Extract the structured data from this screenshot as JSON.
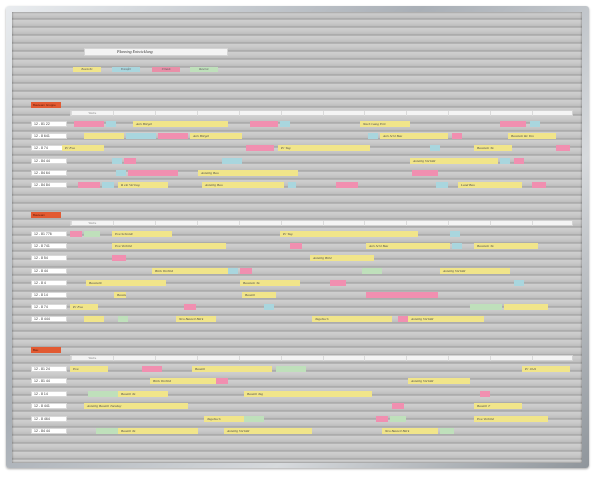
{
  "board": {
    "title": "Planning Entwicklung",
    "legend": [
      {
        "label": "Baustelle",
        "color": "#f1e58a"
      },
      {
        "label": "Transfer",
        "color": "#a9d6de"
      },
      {
        "label": "Urlaub",
        "color": "#e98fa8"
      },
      {
        "label": "Reserve",
        "color": "#bfe0bb"
      }
    ]
  },
  "sections": [
    {
      "tag": "Bauteam Gruppe",
      "header": [
        "Woche",
        "",
        "",
        "",
        "",
        "",
        "",
        "",
        "",
        "",
        "",
        ""
      ],
      "rows": [
        {
          "label": "12 - 81 22",
          "cards": [
            {
              "text": "",
              "color": "#f18fb0"
            },
            {
              "text": "",
              "color": "#a9d6de"
            },
            {
              "text": "Avis Bürgel",
              "color": "#f1e58a"
            },
            {
              "text": "",
              "color": "#f18fb0"
            },
            {
              "text": "",
              "color": "#a9d6de"
            },
            {
              "text": "Nach Gang Erle",
              "color": "#f1e58a"
            },
            {
              "text": "",
              "color": "#f18fb0"
            },
            {
              "text": "",
              "color": "#a9d6de"
            }
          ]
        },
        {
          "label": "12 - 8 641",
          "cards": [
            {
              "text": "",
              "color": "#f1e58a"
            },
            {
              "text": "",
              "color": "#a9d6de"
            },
            {
              "text": "",
              "color": "#f18fb0"
            },
            {
              "text": "Avis Bürgel",
              "color": "#f1e58a"
            },
            {
              "text": "",
              "color": "#a9d6de"
            },
            {
              "text": "Avis Schl Bau",
              "color": "#f1e58a"
            },
            {
              "text": "",
              "color": "#f18fb0"
            },
            {
              "text": "Baustein Re Ton",
              "color": "#f1e58a"
            }
          ]
        },
        {
          "label": "12 - 8 74",
          "cards": [
            {
              "text": "Pr Eva",
              "color": "#f1e58a"
            },
            {
              "text": "",
              "color": "#f18fb0"
            },
            {
              "text": "Pr Tag",
              "color": "#f1e58a"
            },
            {
              "text": "",
              "color": "#a9d6de"
            },
            {
              "text": "Baustein Ta",
              "color": "#f1e58a"
            },
            {
              "text": "",
              "color": "#f18fb0"
            }
          ]
        },
        {
          "label": "12 - 84 44",
          "cards": [
            {
              "text": "",
              "color": "#a9d6de"
            },
            {
              "text": "",
              "color": "#f18fb0"
            },
            {
              "text": "",
              "color": "#a9d6de"
            },
            {
              "text": "Anteilig Vorbild",
              "color": "#f1e58a"
            },
            {
              "text": "",
              "color": "#a9d6de"
            },
            {
              "text": "",
              "color": "#f18fb0"
            }
          ]
        },
        {
          "label": "12 - 84 64",
          "cards": [
            {
              "text": "",
              "color": "#a9d6de"
            },
            {
              "text": "",
              "color": "#f18fb0"
            },
            {
              "text": "Anteilig Bau",
              "color": "#f1e58a"
            },
            {
              "text": "",
              "color": "#f18fb0"
            }
          ]
        },
        {
          "label": "12 - 84 84",
          "cards": [
            {
              "text": "",
              "color": "#f18fb0"
            },
            {
              "text": "",
              "color": "#a9d6de"
            },
            {
              "text": "R ein Vertrag",
              "color": "#f1e58a"
            },
            {
              "text": "Anteilig Bau",
              "color": "#f1e58a"
            },
            {
              "text": "",
              "color": "#a9d6de"
            },
            {
              "text": "",
              "color": "#f18fb0"
            },
            {
              "text": "",
              "color": "#a9d6de"
            },
            {
              "text": "Land Bau",
              "color": "#f1e58a"
            },
            {
              "text": "",
              "color": "#f18fb0"
            }
          ]
        }
      ]
    },
    {
      "tag": "Bauteam",
      "header": [
        "Woche",
        "",
        "",
        "",
        "",
        "",
        "",
        "",
        "",
        "",
        "",
        ""
      ],
      "rows": [
        {
          "label": "12 - 81 776",
          "cards": [
            {
              "text": "",
              "color": "#f18fb0"
            },
            {
              "text": "",
              "color": "#bfe0bb"
            },
            {
              "text": "Eva Schmidt",
              "color": "#f1e58a"
            },
            {
              "text": "Pr Tag",
              "color": "#f1e58a"
            },
            {
              "text": "",
              "color": "#a9d6de"
            }
          ]
        },
        {
          "label": "12 - 8 741",
          "cards": [
            {
              "text": "Eva Vorbild",
              "color": "#f1e58a"
            },
            {
              "text": "",
              "color": "#f18fb0"
            },
            {
              "text": "Avis Schl Bau",
              "color": "#f1e58a"
            },
            {
              "text": "",
              "color": "#a9d6de"
            },
            {
              "text": "Baustein Ta",
              "color": "#f1e58a"
            }
          ]
        },
        {
          "label": "12 - 8 54",
          "cards": [
            {
              "text": "",
              "color": "#f18fb0"
            },
            {
              "text": "Anteilig Bühl",
              "color": "#f1e58a"
            }
          ]
        },
        {
          "label": "12 - 8 44",
          "cards": [
            {
              "text": "Bürk Vorbild",
              "color": "#f1e58a"
            },
            {
              "text": "",
              "color": "#a9d6de"
            },
            {
              "text": "",
              "color": "#f18fb0"
            },
            {
              "text": "",
              "color": "#bfe0bb"
            },
            {
              "text": "Anteilig Vorbild",
              "color": "#f1e58a"
            }
          ]
        },
        {
          "label": "12 - 8 4",
          "cards": [
            {
              "text": "Baustelle",
              "color": "#f1e58a"
            },
            {
              "text": "Baustein Ta",
              "color": "#f1e58a"
            },
            {
              "text": "",
              "color": "#f18fb0"
            },
            {
              "text": "",
              "color": "#a9d6de"
            }
          ]
        },
        {
          "label": "12 - 8 14",
          "cards": [
            {
              "text": "Baustein Ta",
              "color": "#f1e58a"
            },
            {
              "text": "Bauteil",
              "color": "#f1e58a"
            },
            {
              "text": "",
              "color": "#f18fb0"
            }
          ]
        },
        {
          "label": "12 - 8 74",
          "cards": [
            {
              "text": "Pr Eva",
              "color": "#f1e58a"
            },
            {
              "text": "",
              "color": "#f18fb0"
            },
            {
              "text": "",
              "color": "#a9d6de"
            },
            {
              "text": "",
              "color": "#bfe0bb"
            },
            {
              "text": "",
              "color": "#f1e58a"
            }
          ]
        },
        {
          "label": "12 - 8 444",
          "cards": [
            {
              "text": "",
              "color": "#f1e58a"
            },
            {
              "text": "",
              "color": "#bfe0bb"
            },
            {
              "text": "Neu Bauteil Bürk",
              "color": "#f1e58a"
            },
            {
              "text": "Tagebuch",
              "color": "#f1e58a"
            },
            {
              "text": "",
              "color": "#f18fb0"
            },
            {
              "text": "Anteilig Vorbild",
              "color": "#f1e58a"
            }
          ]
        }
      ]
    },
    {
      "tag": "Bau",
      "header": [
        "Woche",
        "",
        "",
        "",
        "",
        "",
        "",
        "",
        "",
        "",
        "",
        ""
      ],
      "rows": [
        {
          "label": "12 - 81 24",
          "cards": [
            {
              "text": "Eva",
              "color": "#f1e58a"
            },
            {
              "text": "",
              "color": "#f18fb0"
            },
            {
              "text": "Bauteil",
              "color": "#f1e58a"
            },
            {
              "text": "",
              "color": "#bfe0bb"
            },
            {
              "text": "Pr 1041",
              "color": "#f1e58a"
            }
          ]
        },
        {
          "label": "12 - 81 44",
          "cards": [
            {
              "text": "Bürk Vorbild",
              "color": "#f1e58a"
            },
            {
              "text": "",
              "color": "#f18fb0"
            },
            {
              "text": "Anteilig Vorbild",
              "color": "#f1e58a"
            }
          ]
        },
        {
          "label": "12 - 8 14",
          "cards": [
            {
              "text": "",
              "color": "#bfe0bb"
            },
            {
              "text": "Bauteil Ta",
              "color": "#f1e58a"
            },
            {
              "text": "Bauteil Tag",
              "color": "#f1e58a"
            },
            {
              "text": "",
              "color": "#f18fb0"
            }
          ]
        },
        {
          "label": "12 - 8 441",
          "cards": [
            {
              "text": "Anteilig Bauteil Tuesday",
              "color": "#f1e58a"
            },
            {
              "text": "",
              "color": "#f18fb0"
            },
            {
              "text": "Bauteil T",
              "color": "#f1e58a"
            }
          ]
        },
        {
          "label": "12 - 8 464",
          "cards": [
            {
              "text": "Tagebuch",
              "color": "#f1e58a"
            },
            {
              "text": "",
              "color": "#bfe0bb"
            },
            {
              "text": "",
              "color": "#f18fb0"
            },
            {
              "text": "",
              "color": "#bfe0bb"
            },
            {
              "text": "Eva Vorbild",
              "color": "#f1e58a"
            }
          ]
        },
        {
          "label": "12 - 84 44",
          "cards": [
            {
              "text": "",
              "color": "#bfe0bb"
            },
            {
              "text": "Bauteil Ta",
              "color": "#f1e58a"
            },
            {
              "text": "Anteilig Vorbild",
              "color": "#f1e58a"
            },
            {
              "text": "Neu Bauteil Bürk",
              "color": "#f1e58a"
            },
            {
              "text": "",
              "color": "#bfe0bb"
            }
          ]
        }
      ]
    }
  ]
}
